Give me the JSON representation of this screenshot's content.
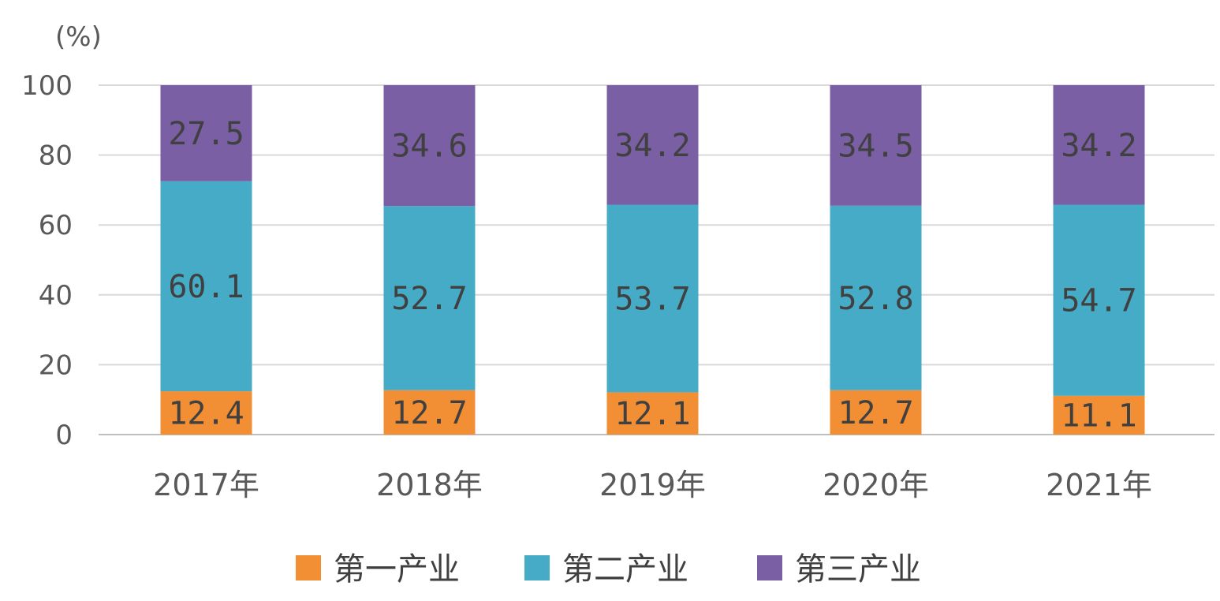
{
  "chart_data": {
    "type": "bar",
    "stacked": true,
    "unit_label": "(%)",
    "categories": [
      "2017年",
      "2018年",
      "2019年",
      "2020年",
      "2021年"
    ],
    "series": [
      {
        "name": "第一产业",
        "color": "#F28E33",
        "values": [
          12.4,
          12.7,
          12.1,
          12.7,
          11.1
        ],
        "labels": [
          "12.4",
          "12.7",
          "12.1",
          "12.7",
          "11.1"
        ]
      },
      {
        "name": "第二产业",
        "color": "#45ABC6",
        "values": [
          60.1,
          52.7,
          53.7,
          52.8,
          54.7
        ],
        "labels": [
          "60.1",
          "52.7",
          "53.7",
          "52.8",
          "54.7"
        ]
      },
      {
        "name": "第三产业",
        "color": "#7B5FA5",
        "values": [
          27.5,
          34.6,
          34.2,
          34.5,
          34.2
        ],
        "labels": [
          "27.5",
          "34.6",
          "34.2",
          "34.5",
          "34.2"
        ]
      }
    ],
    "yticks": [
      "0",
      "20",
      "40",
      "60",
      "80",
      "100"
    ],
    "ylim": [
      0,
      100
    ],
    "grid": true,
    "legend_position": "bottom"
  }
}
